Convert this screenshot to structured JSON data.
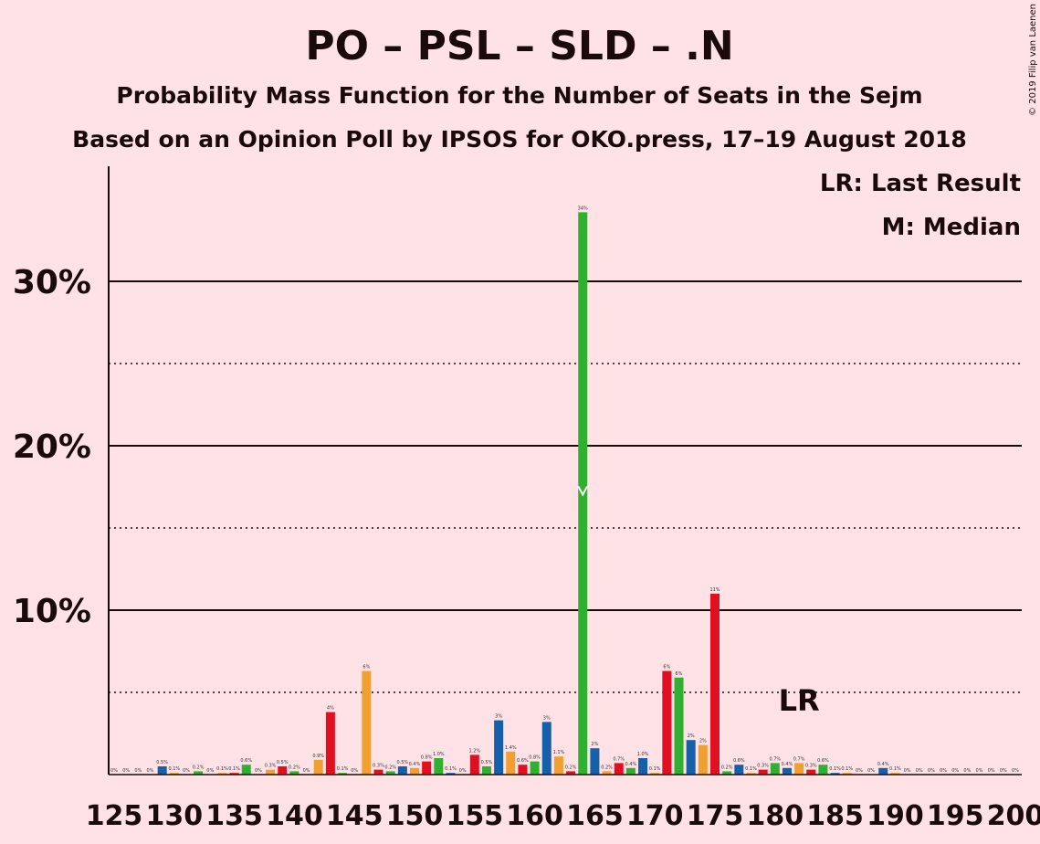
{
  "copyright": "© 2019 Filip van Laenen",
  "chart_data": {
    "type": "bar",
    "title": "PO – PSL – SLD – .N",
    "subtitle": "Probability Mass Function for the Number of Seats in the Sejm",
    "subtitle2": "Based on an Opinion Poll by IPSOS for OKO.press, 17–19 August 2018",
    "legend": [
      "LR: Last Result",
      "M: Median"
    ],
    "legend_position": "top-right",
    "xlim": [
      125,
      200
    ],
    "ylim": [
      0,
      37
    ],
    "y_ticks": [
      10,
      20,
      30
    ],
    "y_tick_labels": [
      "10%",
      "20%",
      "30%"
    ],
    "x_ticks": [
      125,
      130,
      135,
      140,
      145,
      150,
      155,
      160,
      165,
      170,
      175,
      180,
      185,
      190,
      195,
      200
    ],
    "gridlines_solid": [
      10,
      20,
      30
    ],
    "gridlines_dotted": [
      5,
      15,
      25
    ],
    "median": 164,
    "last_result": 182,
    "last_result_label": "LR",
    "colors": [
      "#1560a8",
      "#f0a030",
      "#e01020",
      "#30b030"
    ],
    "series": [
      {
        "x": 125,
        "y": 0,
        "label": "0%"
      },
      {
        "x": 126,
        "y": 0,
        "label": "0%"
      },
      {
        "x": 127,
        "y": 0,
        "label": "0%"
      },
      {
        "x": 128,
        "y": 0,
        "label": "0%"
      },
      {
        "x": 129,
        "y": 0.5,
        "label": "0.5%"
      },
      {
        "x": 130,
        "y": 0.1,
        "label": "0.1%"
      },
      {
        "x": 131,
        "y": 0,
        "label": "0%"
      },
      {
        "x": 132,
        "y": 0.2,
        "label": "0.2%"
      },
      {
        "x": 133,
        "y": 0,
        "label": "0%"
      },
      {
        "x": 134,
        "y": 0.1,
        "label": "0.1%"
      },
      {
        "x": 135,
        "y": 0.1,
        "label": "0.1%"
      },
      {
        "x": 136,
        "y": 0.6,
        "label": "0.6%"
      },
      {
        "x": 137,
        "y": 0,
        "label": "0%"
      },
      {
        "x": 138,
        "y": 0.3,
        "label": "0.3%"
      },
      {
        "x": 139,
        "y": 0.5,
        "label": "0.5%"
      },
      {
        "x": 140,
        "y": 0.2,
        "label": "0.2%"
      },
      {
        "x": 141,
        "y": 0,
        "label": "0%"
      },
      {
        "x": 142,
        "y": 0.9,
        "label": "0.9%"
      },
      {
        "x": 143,
        "y": 3.8,
        "label": "4%"
      },
      {
        "x": 144,
        "y": 0.1,
        "label": "0.1%"
      },
      {
        "x": 145,
        "y": 0,
        "label": "0%"
      },
      {
        "x": 146,
        "y": 6.3,
        "label": "6%"
      },
      {
        "x": 147,
        "y": 0.3,
        "label": "0.3%"
      },
      {
        "x": 148,
        "y": 0.2,
        "label": "0.2%"
      },
      {
        "x": 149,
        "y": 0.5,
        "label": "0.5%"
      },
      {
        "x": 150,
        "y": 0.4,
        "label": "0.4%"
      },
      {
        "x": 151,
        "y": 0.8,
        "label": "0.8%"
      },
      {
        "x": 152,
        "y": 1.0,
        "label": "1.0%"
      },
      {
        "x": 153,
        "y": 0.1,
        "label": "0.1%"
      },
      {
        "x": 154,
        "y": 0,
        "label": "0%"
      },
      {
        "x": 155,
        "y": 1.2,
        "label": "1.2%"
      },
      {
        "x": 156,
        "y": 0.5,
        "label": "0.5%"
      },
      {
        "x": 157,
        "y": 3.3,
        "label": "3%"
      },
      {
        "x": 158,
        "y": 1.4,
        "label": "1.4%"
      },
      {
        "x": 159,
        "y": 0.6,
        "label": "0.6%"
      },
      {
        "x": 160,
        "y": 0.8,
        "label": "0.8%"
      },
      {
        "x": 161,
        "y": 3.2,
        "label": "3%"
      },
      {
        "x": 162,
        "y": 1.1,
        "label": "1.1%"
      },
      {
        "x": 163,
        "y": 0.2,
        "label": "0.2%"
      },
      {
        "x": 164,
        "y": 34.2,
        "label": "34%"
      },
      {
        "x": 165,
        "y": 1.6,
        "label": "2%"
      },
      {
        "x": 166,
        "y": 0.2,
        "label": "0.2%"
      },
      {
        "x": 167,
        "y": 0.7,
        "label": "0.7%"
      },
      {
        "x": 168,
        "y": 0.4,
        "label": "0.4%"
      },
      {
        "x": 169,
        "y": 1.0,
        "label": "1.0%"
      },
      {
        "x": 170,
        "y": 0.1,
        "label": "0.1%"
      },
      {
        "x": 171,
        "y": 6.3,
        "label": "6%"
      },
      {
        "x": 172,
        "y": 5.9,
        "label": "6%"
      },
      {
        "x": 173,
        "y": 2.1,
        "label": "2%"
      },
      {
        "x": 174,
        "y": 1.8,
        "label": "2%"
      },
      {
        "x": 175,
        "y": 11.0,
        "label": "11%"
      },
      {
        "x": 176,
        "y": 0.2,
        "label": "0.2%"
      },
      {
        "x": 177,
        "y": 0.6,
        "label": "0.6%"
      },
      {
        "x": 178,
        "y": 0.1,
        "label": "0.1%"
      },
      {
        "x": 179,
        "y": 0.3,
        "label": "0.3%"
      },
      {
        "x": 180,
        "y": 0.7,
        "label": "0.7%"
      },
      {
        "x": 181,
        "y": 0.4,
        "label": "0.4%"
      },
      {
        "x": 182,
        "y": 0.7,
        "label": "0.7%"
      },
      {
        "x": 183,
        "y": 0.3,
        "label": "0.3%"
      },
      {
        "x": 184,
        "y": 0.6,
        "label": "0.6%"
      },
      {
        "x": 185,
        "y": 0.1,
        "label": "0.1%"
      },
      {
        "x": 186,
        "y": 0.1,
        "label": "0.1%"
      },
      {
        "x": 187,
        "y": 0,
        "label": "0%"
      },
      {
        "x": 188,
        "y": 0,
        "label": "0%"
      },
      {
        "x": 189,
        "y": 0.4,
        "label": "0.4%"
      },
      {
        "x": 190,
        "y": 0.1,
        "label": "0.1%"
      },
      {
        "x": 191,
        "y": 0,
        "label": "0%"
      },
      {
        "x": 192,
        "y": 0,
        "label": "0%"
      },
      {
        "x": 193,
        "y": 0,
        "label": "0%"
      },
      {
        "x": 194,
        "y": 0,
        "label": "0%"
      },
      {
        "x": 195,
        "y": 0,
        "label": "0%"
      },
      {
        "x": 196,
        "y": 0,
        "label": "0%"
      },
      {
        "x": 197,
        "y": 0,
        "label": "0%"
      },
      {
        "x": 198,
        "y": 0,
        "label": "0%"
      },
      {
        "x": 199,
        "y": 0,
        "label": "0%"
      },
      {
        "x": 200,
        "y": 0,
        "label": "0%"
      }
    ]
  }
}
